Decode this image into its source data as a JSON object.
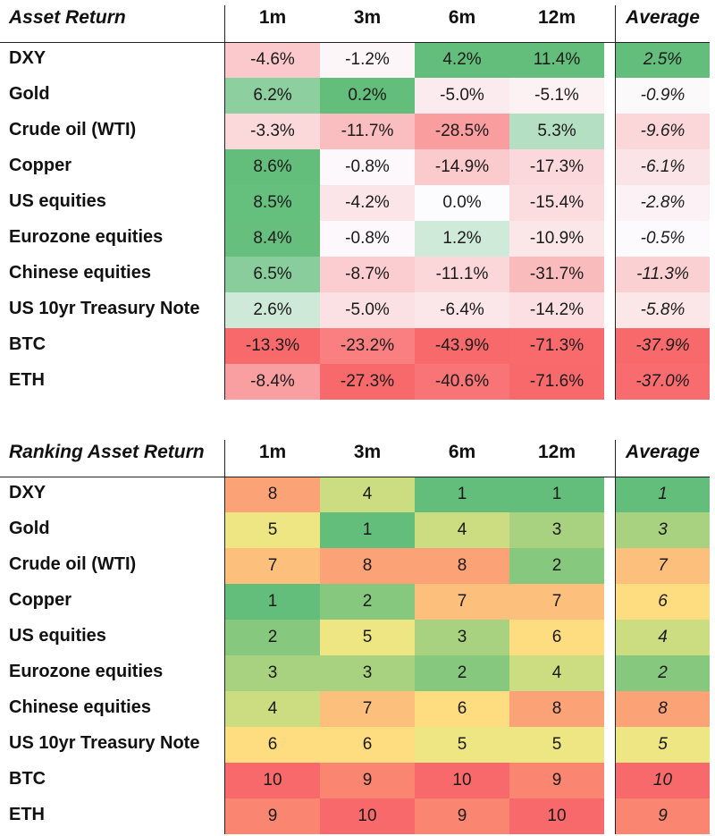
{
  "chart_data": [
    {
      "type": "table",
      "title": "Asset Return",
      "columns": [
        "1m",
        "3m",
        "6m",
        "12m"
      ],
      "average_label": "Average",
      "rows": [
        {
          "label": "DXY",
          "values": [
            "-4.6%",
            "-1.2%",
            "4.2%",
            "11.4%"
          ],
          "average": "2.5%"
        },
        {
          "label": "Gold",
          "values": [
            "6.2%",
            "0.2%",
            "-5.0%",
            "-5.1%"
          ],
          "average": "-0.9%"
        },
        {
          "label": "Crude oil (WTI)",
          "values": [
            "-3.3%",
            "-11.7%",
            "-28.5%",
            "5.3%"
          ],
          "average": "-9.6%"
        },
        {
          "label": "Copper",
          "values": [
            "8.6%",
            "-0.8%",
            "-14.9%",
            "-17.3%"
          ],
          "average": "-6.1%"
        },
        {
          "label": "US equities",
          "values": [
            "8.5%",
            "-4.2%",
            "0.0%",
            "-15.4%"
          ],
          "average": "-2.8%"
        },
        {
          "label": "Eurozone equities",
          "values": [
            "8.4%",
            "-0.8%",
            "1.2%",
            "-10.9%"
          ],
          "average": "-0.5%"
        },
        {
          "label": "Chinese equities",
          "values": [
            "6.5%",
            "-8.7%",
            "-11.1%",
            "-31.7%"
          ],
          "average": "-11.3%"
        },
        {
          "label": "US 10yr Treasury Note",
          "values": [
            "2.6%",
            "-5.0%",
            "-6.4%",
            "-14.2%"
          ],
          "average": "-5.8%"
        },
        {
          "label": "BTC",
          "values": [
            "-13.3%",
            "-23.2%",
            "-43.9%",
            "-71.3%"
          ],
          "average": "-37.9%"
        },
        {
          "label": "ETH",
          "values": [
            "-8.4%",
            "-27.3%",
            "-40.6%",
            "-71.6%"
          ],
          "average": "-37.0%"
        }
      ]
    },
    {
      "type": "table",
      "title": "Ranking Asset Return",
      "columns": [
        "1m",
        "3m",
        "6m",
        "12m"
      ],
      "average_label": "Average",
      "rows": [
        {
          "label": "DXY",
          "values": [
            "8",
            "4",
            "1",
            "1"
          ],
          "average": "1"
        },
        {
          "label": "Gold",
          "values": [
            "5",
            "1",
            "4",
            "3"
          ],
          "average": "3"
        },
        {
          "label": "Crude oil (WTI)",
          "values": [
            "7",
            "8",
            "8",
            "2"
          ],
          "average": "7"
        },
        {
          "label": "Copper",
          "values": [
            "1",
            "2",
            "7",
            "7"
          ],
          "average": "6"
        },
        {
          "label": "US equities",
          "values": [
            "2",
            "5",
            "3",
            "6"
          ],
          "average": "4"
        },
        {
          "label": "Eurozone equities",
          "values": [
            "3",
            "3",
            "2",
            "4"
          ],
          "average": "2"
        },
        {
          "label": "Chinese equities",
          "values": [
            "4",
            "7",
            "6",
            "8"
          ],
          "average": "8"
        },
        {
          "label": "US 10yr Treasury Note",
          "values": [
            "6",
            "6",
            "5",
            "5"
          ],
          "average": "5"
        },
        {
          "label": "BTC",
          "values": [
            "10",
            "9",
            "10",
            "9"
          ],
          "average": "10"
        },
        {
          "label": "ETH",
          "values": [
            "9",
            "10",
            "9",
            "10"
          ],
          "average": "9"
        }
      ]
    }
  ],
  "colors": {
    "return_positive": "#63be7b",
    "return_neutral": "#fcfcff",
    "return_negative": "#f8696b",
    "rank_best": "#63be7b",
    "rank_mid": "#ffeb84",
    "rank_worst": "#f8696b"
  }
}
